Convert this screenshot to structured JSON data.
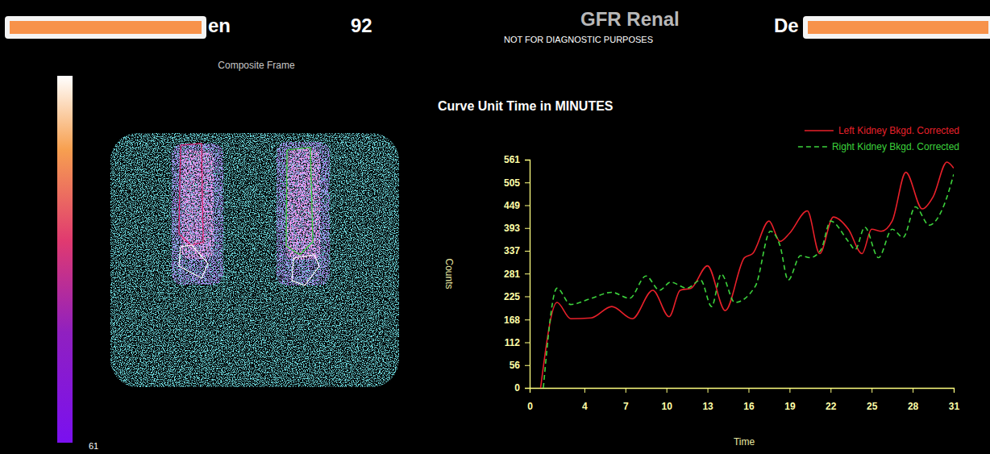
{
  "header": {
    "texts": [
      "en",
      "92",
      "GFR Renal",
      "De"
    ],
    "notice": "NOT FOR DIAGNOSTIC PURPOSES"
  },
  "image": {
    "title": "Composite Frame",
    "colorbar_ticks": [
      61
    ]
  },
  "chart_data": {
    "type": "line",
    "title": "Curve Unit Time in MINUTES",
    "x_label": "Time",
    "y_label": "Counts",
    "xlim": [
      0,
      31
    ],
    "xticks": [
      0,
      4,
      7,
      10,
      13,
      16,
      19,
      22,
      25,
      28,
      31
    ],
    "ylim": [
      0,
      561
    ],
    "yticks": [
      0,
      56,
      112,
      168,
      225,
      281,
      337,
      393,
      449,
      505,
      561
    ],
    "grid": false,
    "legend": "top-right",
    "series": [
      {
        "name": "Left Kidney Bkgd. Corrected",
        "color": "#e8202a",
        "line_style": "solid",
        "x": [
          0.8,
          2,
          3,
          4.5,
          6,
          7.5,
          9,
          10.2,
          11,
          11.8,
          13,
          14.3,
          15.7,
          16.3,
          17.5,
          18.3,
          19,
          20.3,
          21.2,
          22.2,
          23.3,
          24.3,
          25,
          25.7,
          26.5,
          27.5,
          28.7,
          29.5,
          30.5,
          31
        ],
        "values": [
          0,
          210,
          170,
          172,
          200,
          170,
          240,
          175,
          240,
          245,
          300,
          190,
          320,
          330,
          410,
          360,
          380,
          435,
          330,
          420,
          390,
          330,
          390,
          385,
          410,
          530,
          440,
          470,
          555,
          540
        ]
      },
      {
        "name": "Right Kidney Bkgd. Corrected",
        "color": "#3cd23c",
        "line_style": "dashed",
        "x": [
          1,
          2,
          3,
          4.5,
          6,
          7.3,
          8.5,
          9.5,
          10.3,
          11.5,
          12.5,
          13.3,
          14,
          15,
          16.5,
          17.6,
          18.3,
          18.9,
          19.8,
          20.5,
          21.3,
          22,
          23.3,
          23.8,
          24.5,
          25.5,
          26.5,
          27.3,
          28.2,
          29.2,
          30.3,
          31
        ],
        "values": [
          0,
          245,
          205,
          220,
          235,
          220,
          275,
          240,
          260,
          245,
          265,
          200,
          280,
          210,
          250,
          385,
          350,
          265,
          325,
          320,
          340,
          410,
          360,
          340,
          395,
          320,
          390,
          370,
          445,
          400,
          450,
          525
        ]
      }
    ]
  }
}
